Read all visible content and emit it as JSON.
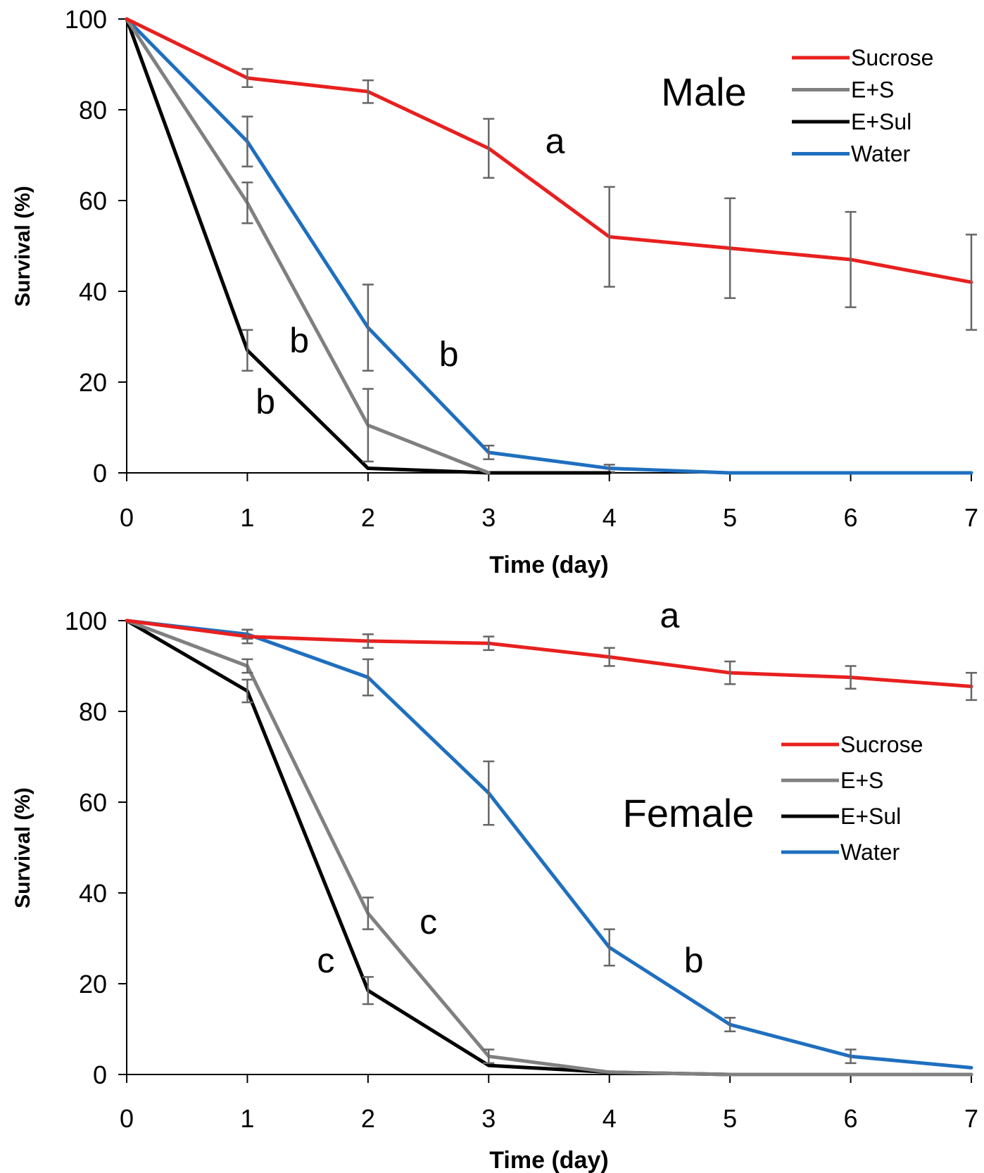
{
  "chart_data": [
    {
      "type": "line",
      "panel_label": "Male",
      "xlabel": "Time (day)",
      "ylabel": "Survival (%)",
      "xlim": [
        0,
        7
      ],
      "ylim": [
        0,
        100
      ],
      "x_ticks": [
        "0",
        "1",
        "2",
        "3",
        "4",
        "5",
        "6",
        "7"
      ],
      "y_ticks": [
        "0",
        "20",
        "40",
        "60",
        "80",
        "100"
      ],
      "grid": false,
      "legend_position": "top-right",
      "series": [
        {
          "name": "Sucrose",
          "color": "#e8201f",
          "x": [
            0,
            1,
            2,
            3,
            4,
            5,
            6,
            7
          ],
          "y": [
            100,
            87,
            84,
            71.5,
            52,
            49.5,
            47,
            42
          ],
          "err": [
            0,
            2,
            2.5,
            6.5,
            11,
            11,
            10.5,
            10.5
          ]
        },
        {
          "name": "E+S",
          "color": "#808080",
          "x": [
            0,
            1,
            2,
            3
          ],
          "y": [
            100,
            59.5,
            10.5,
            0
          ],
          "err": [
            0,
            4.5,
            8,
            0
          ]
        },
        {
          "name": "E+Sul",
          "color": "#000000",
          "x": [
            0,
            1,
            2,
            3,
            4
          ],
          "y": [
            100,
            27,
            1,
            0,
            0
          ],
          "err": [
            0,
            4.5,
            0,
            0,
            0
          ]
        },
        {
          "name": "Water",
          "color": "#1f6fbf",
          "x": [
            0,
            1,
            2,
            3,
            4,
            5,
            6,
            7
          ],
          "y": [
            100,
            73,
            32,
            4.5,
            1,
            0,
            0,
            0
          ],
          "err": [
            0,
            5.5,
            9.5,
            1.5,
            0.8,
            0,
            0,
            0
          ]
        }
      ],
      "annotations": [
        {
          "text": "a",
          "x": 3.55,
          "y": 70.5
        },
        {
          "text": "b",
          "x": 1.43,
          "y": 26.5
        },
        {
          "text": "b",
          "x": 1.15,
          "y": 13
        },
        {
          "text": "b",
          "x": 2.67,
          "y": 23.5
        }
      ]
    },
    {
      "type": "line",
      "panel_label": "Female",
      "xlabel": "Time (day)",
      "ylabel": "Survival (%)",
      "xlim": [
        0,
        7
      ],
      "ylim": [
        0,
        100
      ],
      "x_ticks": [
        "0",
        "1",
        "2",
        "3",
        "4",
        "5",
        "6",
        "7"
      ],
      "y_ticks": [
        "0",
        "20",
        "40",
        "60",
        "80",
        "100"
      ],
      "grid": false,
      "legend_position": "right",
      "series": [
        {
          "name": "Sucrose",
          "color": "#e8201f",
          "x": [
            0,
            1,
            2,
            3,
            4,
            5,
            6,
            7
          ],
          "y": [
            100,
            96.5,
            95.5,
            95,
            92,
            88.5,
            87.5,
            85.5
          ],
          "err": [
            0,
            1.5,
            1.5,
            1.5,
            2,
            2.5,
            2.5,
            3
          ]
        },
        {
          "name": "E+S",
          "color": "#808080",
          "x": [
            0,
            1,
            2,
            3,
            4,
            5,
            6,
            7
          ],
          "y": [
            100,
            90,
            35.5,
            4,
            0.5,
            0,
            0,
            0
          ],
          "err": [
            0,
            1.5,
            3.5,
            1.5,
            0,
            0,
            0,
            0
          ]
        },
        {
          "name": "E+Sul",
          "color": "#000000",
          "x": [
            0,
            1,
            2,
            3,
            4,
            5,
            6,
            7
          ],
          "y": [
            100,
            84.5,
            18.5,
            2,
            0.5,
            0,
            0,
            0
          ],
          "err": [
            0,
            2.5,
            3,
            0,
            0,
            0,
            0,
            0
          ]
        },
        {
          "name": "Water",
          "color": "#1f6fbf",
          "x": [
            0,
            1,
            2,
            3,
            4,
            5,
            6,
            7
          ],
          "y": [
            100,
            97,
            87.5,
            62,
            28,
            11,
            4,
            1.5
          ],
          "err": [
            0,
            1,
            4,
            7,
            4,
            1.5,
            1.5,
            0
          ]
        }
      ],
      "annotations": [
        {
          "text": "a",
          "x": 4.5,
          "y": 98.5
        },
        {
          "text": "c",
          "x": 2.5,
          "y": 31
        },
        {
          "text": "c",
          "x": 1.65,
          "y": 22.5
        },
        {
          "text": "b",
          "x": 4.7,
          "y": 22.5
        }
      ]
    }
  ]
}
